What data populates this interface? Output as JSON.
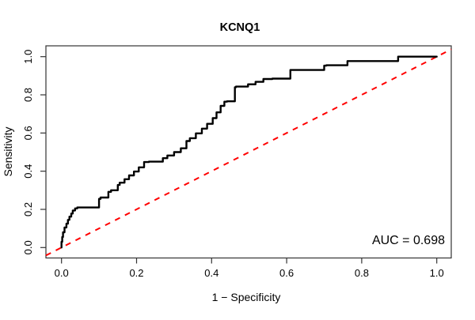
{
  "chart_data": {
    "type": "line",
    "title": "KCNQ1",
    "xlabel": "1 − Specificity",
    "ylabel": "Sensitivity",
    "xlim": [
      0,
      1
    ],
    "ylim": [
      0,
      1
    ],
    "grid": false,
    "legend_position": "none",
    "xticks": {
      "values": [
        0.0,
        0.2,
        0.4,
        0.6,
        0.8,
        1.0
      ],
      "labels": [
        "0.0",
        "0.2",
        "0.4",
        "0.6",
        "0.8",
        "1.0"
      ]
    },
    "yticks": {
      "values": [
        0.0,
        0.2,
        0.4,
        0.6,
        0.8,
        1.0
      ],
      "labels": [
        "0.0",
        "0.2",
        "0.4",
        "0.6",
        "0.8",
        "1.0"
      ]
    },
    "annotation": {
      "text": "AUC = 0.698",
      "auc_value": 0.698,
      "position": "bottom-right"
    },
    "series": [
      {
        "name": "ROC curve",
        "style": "step",
        "color": "#000000",
        "linewidth": 2.4,
        "points": [
          [
            0.0,
            0.0
          ],
          [
            0.002,
            0.03
          ],
          [
            0.004,
            0.055
          ],
          [
            0.008,
            0.08
          ],
          [
            0.013,
            0.105
          ],
          [
            0.017,
            0.125
          ],
          [
            0.021,
            0.145
          ],
          [
            0.026,
            0.162
          ],
          [
            0.03,
            0.178
          ],
          [
            0.036,
            0.194
          ],
          [
            0.042,
            0.205
          ],
          [
            0.048,
            0.21
          ],
          [
            0.1,
            0.21
          ],
          [
            0.104,
            0.255
          ],
          [
            0.125,
            0.262
          ],
          [
            0.132,
            0.292
          ],
          [
            0.15,
            0.3
          ],
          [
            0.155,
            0.328
          ],
          [
            0.168,
            0.34
          ],
          [
            0.18,
            0.358
          ],
          [
            0.193,
            0.378
          ],
          [
            0.206,
            0.398
          ],
          [
            0.22,
            0.42
          ],
          [
            0.233,
            0.448
          ],
          [
            0.27,
            0.45
          ],
          [
            0.282,
            0.468
          ],
          [
            0.3,
            0.482
          ],
          [
            0.318,
            0.5
          ],
          [
            0.333,
            0.52
          ],
          [
            0.342,
            0.558
          ],
          [
            0.358,
            0.573
          ],
          [
            0.374,
            0.598
          ],
          [
            0.388,
            0.623
          ],
          [
            0.403,
            0.648
          ],
          [
            0.413,
            0.678
          ],
          [
            0.424,
            0.708
          ],
          [
            0.434,
            0.742
          ],
          [
            0.441,
            0.764
          ],
          [
            0.462,
            0.766
          ],
          [
            0.465,
            0.84
          ],
          [
            0.497,
            0.843
          ],
          [
            0.517,
            0.855
          ],
          [
            0.538,
            0.868
          ],
          [
            0.562,
            0.883
          ],
          [
            0.61,
            0.885
          ],
          [
            0.615,
            0.93
          ],
          [
            0.7,
            0.93
          ],
          [
            0.706,
            0.953
          ],
          [
            0.762,
            0.955
          ],
          [
            0.768,
            0.977
          ],
          [
            0.897,
            0.977
          ],
          [
            0.902,
            1.0
          ],
          [
            1.0,
            1.0
          ]
        ]
      },
      {
        "name": "chance diagonal",
        "style": "dashed",
        "color": "#FF0000",
        "linewidth": 2,
        "from": [
          0,
          0
        ],
        "to": [
          1,
          1
        ]
      }
    ]
  },
  "colors": {
    "curve": "#000000",
    "diagonal": "#FF0000",
    "axis": "#333333",
    "background": "#ffffff"
  }
}
